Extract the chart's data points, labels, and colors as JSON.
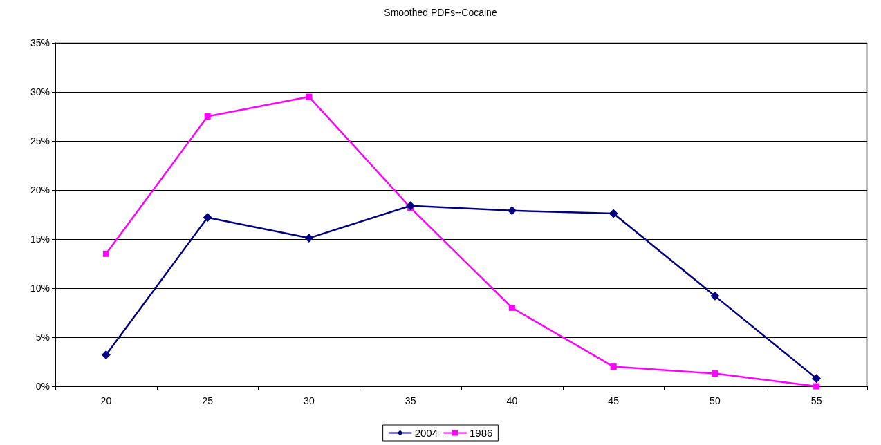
{
  "chart_data": {
    "type": "line",
    "title": "Smoothed PDFs--Cocaine",
    "categories": [
      "20",
      "25",
      "30",
      "35",
      "40",
      "45",
      "50",
      "55"
    ],
    "series": [
      {
        "name": "2004",
        "color": "#000080",
        "marker": "diamond",
        "values": [
          3.2,
          17.2,
          15.1,
          18.4,
          17.9,
          17.6,
          9.2,
          0.8
        ]
      },
      {
        "name": "1986",
        "color": "#ff00ff",
        "marker": "square",
        "values": [
          13.5,
          27.5,
          29.5,
          18.2,
          8.0,
          2.0,
          1.3,
          0
        ]
      }
    ],
    "ylim": [
      0,
      35
    ],
    "yticks": [
      {
        "value": 0,
        "label": "0%"
      },
      {
        "value": 5,
        "label": "5%"
      },
      {
        "value": 10,
        "label": "10%"
      },
      {
        "value": 15,
        "label": "15%"
      },
      {
        "value": 20,
        "label": "20%"
      },
      {
        "value": 25,
        "label": "25%"
      },
      {
        "value": 30,
        "label": "30%"
      },
      {
        "value": 35,
        "label": "35%"
      }
    ],
    "grid": "y",
    "legend": "bottom",
    "line_style": "solid"
  }
}
